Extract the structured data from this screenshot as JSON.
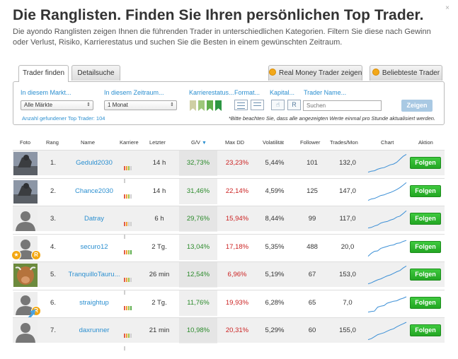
{
  "header": {
    "title": "Die Ranglisten. Finden Sie Ihren persönlichen Top Trader.",
    "intro": "Die ayondo Ranglisten zeigen Ihnen die führenden Trader in unterschiedlichen Kategorien. Filtern Sie diese nach Gewinn oder Verlust, Risiko, Karrierestatus und suchen Sie die Besten in einem gewünschten Zeitraum.",
    "close": "×"
  },
  "tabs": {
    "find": "Trader finden",
    "detail": "Detailsuche",
    "real": "Real Money Trader zeigen",
    "best": "Beliebteste Trader"
  },
  "filters": {
    "markets_label": "In diesem Markt...",
    "markets_value": "Alle Märkte",
    "period_label": "In diesem Zeitraum...",
    "period_value": "1 Monat",
    "career_label": "Karrierestatus...",
    "format_label": "Format...",
    "capital_label": "Kapital...",
    "name_label": "Trader Name...",
    "search_placeholder": "Suchen",
    "show_button": "Zeigen",
    "count_text": "Anzahl gefundener Top Trader: 104",
    "note_text": "*Bitte beachten Sie, dass alle angezeigten Werte einmal pro Stunde aktualisiert werden.",
    "flag_colors": [
      "#e7c4bc",
      "#cfcfa4",
      "#9ec77a",
      "#5fae4c",
      "#2c9642"
    ]
  },
  "table": {
    "headers": {
      "foto": "Foto",
      "rang": "Rang",
      "name": "Name",
      "karriere": "Karriere",
      "letzter": "Letzter",
      "gv": "G/V",
      "maxdd": "Max DD",
      "vol": "Volatilität",
      "follower": "Follower",
      "trades": "Trades/Mon",
      "chart": "Chart",
      "aktion": "Aktion"
    },
    "sort_icon": "▼",
    "follow_label": "Folgen",
    "rows": [
      {
        "rank": "1.",
        "name": "Geduld2030",
        "last": "14 h",
        "gv": "32,73%",
        "dd": "23,23%",
        "vol": "5,44%",
        "followers": "101",
        "trades": "132,0",
        "photo": "statue",
        "career": [
          "#e25b4a",
          "#f2a030",
          "#9ec24a",
          "#cfcfcf",
          "#cfcfcf"
        ],
        "spark": [
          0.05,
          0.1,
          0.12,
          0.2,
          0.25,
          0.28,
          0.35,
          0.42,
          0.46,
          0.55,
          0.7,
          0.85,
          0.95
        ]
      },
      {
        "rank": "2.",
        "name": "Chance2030",
        "last": "14 h",
        "gv": "31,46%",
        "dd": "22,14%",
        "vol": "4,59%",
        "followers": "125",
        "trades": "147,0",
        "photo": "statue",
        "career": [
          "#e25b4a",
          "#f2a030",
          "#9ec24a",
          "#cfcfcf",
          "#cfcfcf"
        ],
        "spark": [
          0.05,
          0.12,
          0.15,
          0.22,
          0.3,
          0.33,
          0.4,
          0.45,
          0.52,
          0.6,
          0.7,
          0.82,
          0.95
        ]
      },
      {
        "rank": "3.",
        "name": "Datray",
        "last": "6 h",
        "gv": "29,76%",
        "dd": "15,94%",
        "vol": "8,44%",
        "followers": "99",
        "trades": "117,0",
        "photo": "avatar",
        "career": [
          "#e25b4a",
          "#f2a030",
          "#cfcfcf",
          "#cfcfcf",
          "#cfcfcf"
        ],
        "spark": [
          0.05,
          0.08,
          0.15,
          0.2,
          0.3,
          0.35,
          0.38,
          0.45,
          0.5,
          0.6,
          0.65,
          0.78,
          0.92
        ]
      },
      {
        "rank": "4.",
        "name": "securo12",
        "last": "2 Tg.",
        "gv": "13,04%",
        "dd": "17,18%",
        "vol": "5,35%",
        "followers": "488",
        "trades": "20,0",
        "photo": "avatar-badges",
        "career": [
          "#e25b4a",
          "#f2a030",
          "#9ec24a",
          "#5fae4c",
          "#cfcfcf"
        ],
        "spark": [
          0.05,
          0.2,
          0.3,
          0.32,
          0.45,
          0.5,
          0.55,
          0.6,
          0.62,
          0.7,
          0.72,
          0.8,
          0.85
        ]
      },
      {
        "rank": "5.",
        "name": "TranquilloTauru...",
        "last": "26 min",
        "gv": "12,54%",
        "dd": "6,96%",
        "vol": "5,19%",
        "followers": "67",
        "trades": "153,0",
        "photo": "cow",
        "career": [
          "#e25b4a",
          "#f2a030",
          "#9ec24a",
          "#cfcfcf",
          "#cfcfcf"
        ],
        "spark": [
          0.05,
          0.1,
          0.18,
          0.25,
          0.3,
          0.38,
          0.45,
          0.5,
          0.58,
          0.66,
          0.72,
          0.85,
          0.95
        ]
      },
      {
        "rank": "6.",
        "name": "straightup",
        "last": "2 Tg.",
        "gv": "11,76%",
        "dd": "19,93%",
        "vol": "6,28%",
        "followers": "65",
        "trades": "7,0",
        "photo": "avatar-arrow",
        "career": [
          "#e25b4a",
          "#f2a030",
          "#9ec24a",
          "#5fae4c",
          "#cfcfcf"
        ],
        "spark": [
          0.05,
          0.08,
          0.1,
          0.3,
          0.35,
          0.38,
          0.5,
          0.55,
          0.6,
          0.62,
          0.7,
          0.75,
          0.82
        ]
      },
      {
        "rank": "7.",
        "name": "daxrunner",
        "last": "21 min",
        "gv": "10,98%",
        "dd": "20,31%",
        "vol": "5,29%",
        "followers": "60",
        "trades": "155,0",
        "photo": "avatar",
        "career": [
          "#e25b4a",
          "#f2a030",
          "#9ec24a",
          "#cfcfcf",
          "#cfcfcf"
        ],
        "spark": [
          0.05,
          0.1,
          0.2,
          0.3,
          0.35,
          0.4,
          0.48,
          0.55,
          0.6,
          0.7,
          0.78,
          0.85,
          0.93
        ]
      }
    ]
  }
}
